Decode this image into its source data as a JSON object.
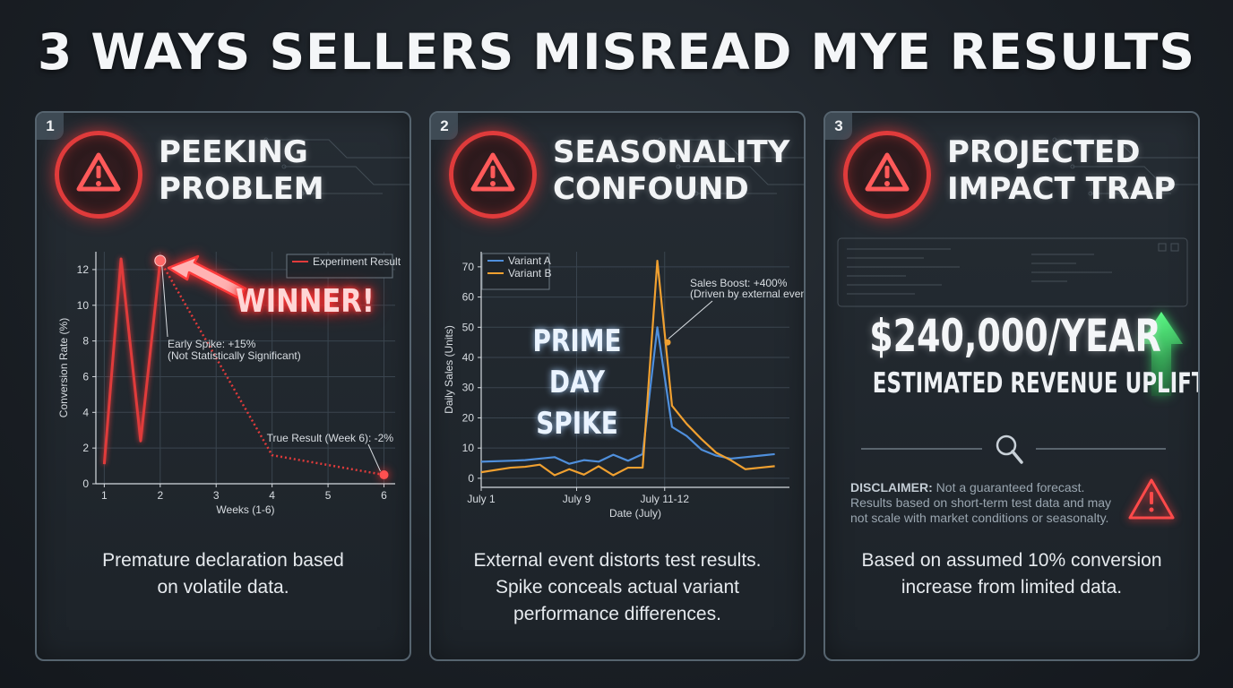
{
  "title": "3 WAYS SELLERS MISREAD MYE RESULTS",
  "panels": [
    {
      "number": "1",
      "title_line1": "PEEKING",
      "title_line2": "PROBLEM",
      "caption_line1": "Premature declaration based",
      "caption_line2": "on volatile data.",
      "overlay_text": "WINNER!",
      "icon": "warning-triangle-icon"
    },
    {
      "number": "2",
      "title_line1": "SEASONALITY",
      "title_line2": "CONFOUND",
      "caption_line1": "External event distorts test results.",
      "caption_line2": "Spike conceals actual variant",
      "caption_line3": "performance differences.",
      "overlay_line1": "PRIME DAY",
      "overlay_line2": "SPIKE",
      "icon": "warning-triangle-icon"
    },
    {
      "number": "3",
      "title_line1": "PROJECTED",
      "title_line2": "IMPACT TRAP",
      "amount": "$240,000/YEAR",
      "subtitle": "ESTIMATED REVENUE UPLIFT",
      "disclaimer_label": "DISCLAIMER:",
      "disclaimer_text": " Not a guaranteed forecast. Results based on short-term test data and may not scale with market conditions or seasonalty.",
      "caption_line1": "Based on assumed 10% conversion",
      "caption_line2": "increase from limited data.",
      "icon": "warning-triangle-icon"
    }
  ],
  "colors": {
    "alert_red": "#e03b3b",
    "variant_a": "#4f8fdc",
    "variant_b": "#f0a030",
    "uplift_green": "#3ddc6a"
  },
  "chart_data": [
    {
      "type": "line",
      "title": "",
      "xlabel": "Weeks (1-6)",
      "ylabel": "Conversion Rate (%)",
      "xlim": [
        0.85,
        6.2
      ],
      "ylim": [
        0,
        13
      ],
      "xticks": [
        1,
        2,
        3,
        4,
        5,
        6
      ],
      "yticks": [
        0,
        2,
        4,
        6,
        8,
        10,
        12
      ],
      "grid": true,
      "legend_position": "top-right",
      "series": [
        {
          "name": "Experiment Result",
          "color": "#e03b3b",
          "x": [
            1,
            1.3,
            1.65,
            2,
            4,
            6
          ],
          "y": [
            1.1,
            12.6,
            2.4,
            12.5,
            1.6,
            0.5
          ],
          "dotted_from_index": 3
        }
      ],
      "annotations": [
        {
          "x": 2,
          "y": 12.5,
          "text_line1": "Early Spike: +15%",
          "text_line2": "(Not Statistically Significant)"
        },
        {
          "x": 6,
          "y": 0.5,
          "text_line1": "True Result (Week 6): -2%"
        }
      ]
    },
    {
      "type": "line",
      "title": "",
      "xlabel": "Date (July)",
      "ylabel": "Daily Sales (Units)",
      "xlim": [
        0,
        21
      ],
      "ylim": [
        -3,
        75
      ],
      "xticks": [
        0,
        6.5,
        12.5
      ],
      "xtick_labels": [
        "July 1",
        "July 9",
        "July 11-12"
      ],
      "yticks": [
        0,
        10,
        20,
        30,
        40,
        50,
        60,
        70
      ],
      "grid": true,
      "legend_position": "top-left",
      "series": [
        {
          "name": "Variant A",
          "color": "#4f8fdc",
          "x": [
            0,
            2,
            3,
            4,
            5,
            6,
            7,
            8,
            9,
            10,
            11,
            12,
            13,
            14,
            15,
            16,
            17,
            18,
            19,
            20
          ],
          "y": [
            5.5,
            5.8,
            6,
            6.5,
            7,
            4.8,
            6,
            5.5,
            7.8,
            5.8,
            8,
            50,
            17,
            14,
            9.5,
            7.5,
            6.5,
            7,
            7.5,
            8
          ]
        },
        {
          "name": "Variant B",
          "color": "#f0a030",
          "x": [
            0,
            2,
            3,
            4,
            5,
            6,
            7,
            8,
            9,
            10,
            11,
            12,
            13,
            14,
            15,
            16,
            17,
            18,
            19,
            20
          ],
          "y": [
            2,
            3.5,
            3.8,
            4.5,
            1,
            3,
            1.2,
            4,
            1,
            3.5,
            3.5,
            72,
            24,
            18,
            13,
            8.5,
            6,
            3,
            3.5,
            4
          ]
        }
      ],
      "annotations": [
        {
          "x": 12.7,
          "y": 45,
          "text_line1": "Sales Boost: +400%",
          "text_line2": "(Driven by external event)"
        }
      ]
    }
  ]
}
